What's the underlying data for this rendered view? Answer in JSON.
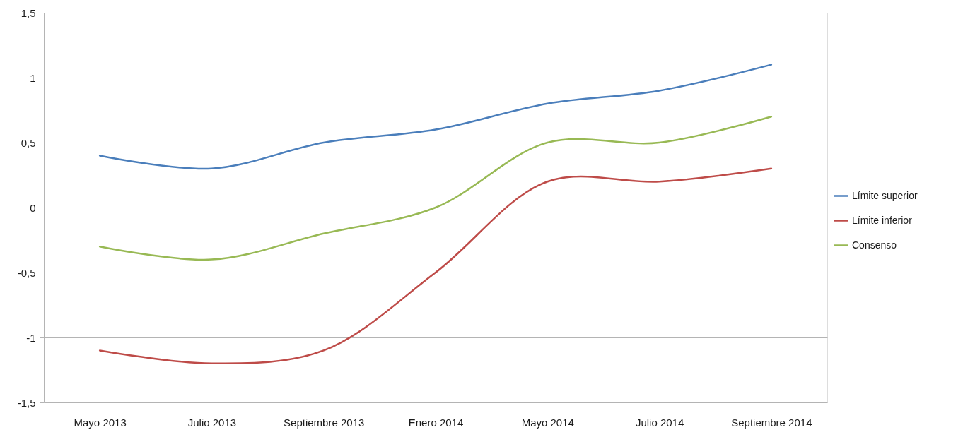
{
  "chart_data": {
    "type": "line",
    "categories": [
      "Mayo 2013",
      "Julio 2013",
      "Septiembre 2013",
      "Enero 2014",
      "Mayo 2014",
      "Julio 2014",
      "Septiembre 2014"
    ],
    "series": [
      {
        "name": "Límite superior",
        "color": "#4a7ebb",
        "values": [
          0.4,
          0.3,
          0.5,
          0.6,
          0.8,
          0.9,
          1.1
        ]
      },
      {
        "name": "Límite inferior",
        "color": "#be4b48",
        "values": [
          -1.1,
          -1.2,
          -1.1,
          -0.5,
          0.2,
          0.2,
          0.3
        ]
      },
      {
        "name": "Consenso",
        "color": "#98b954",
        "values": [
          -0.3,
          -0.4,
          -0.2,
          0.0,
          0.5,
          0.5,
          0.7
        ]
      }
    ],
    "ylim": [
      -1.5,
      1.5
    ],
    "yticks": [
      {
        "value": -1.5,
        "label": "-1,5"
      },
      -1,
      {
        "value": -0.5,
        "label": "-0,5"
      },
      0,
      {
        "value": 0.5,
        "label": "0,5"
      },
      1,
      {
        "value": 1.5,
        "label": "1,5"
      }
    ],
    "grid": "y",
    "legend": "right",
    "marker": "none",
    "line_style": "solid"
  }
}
